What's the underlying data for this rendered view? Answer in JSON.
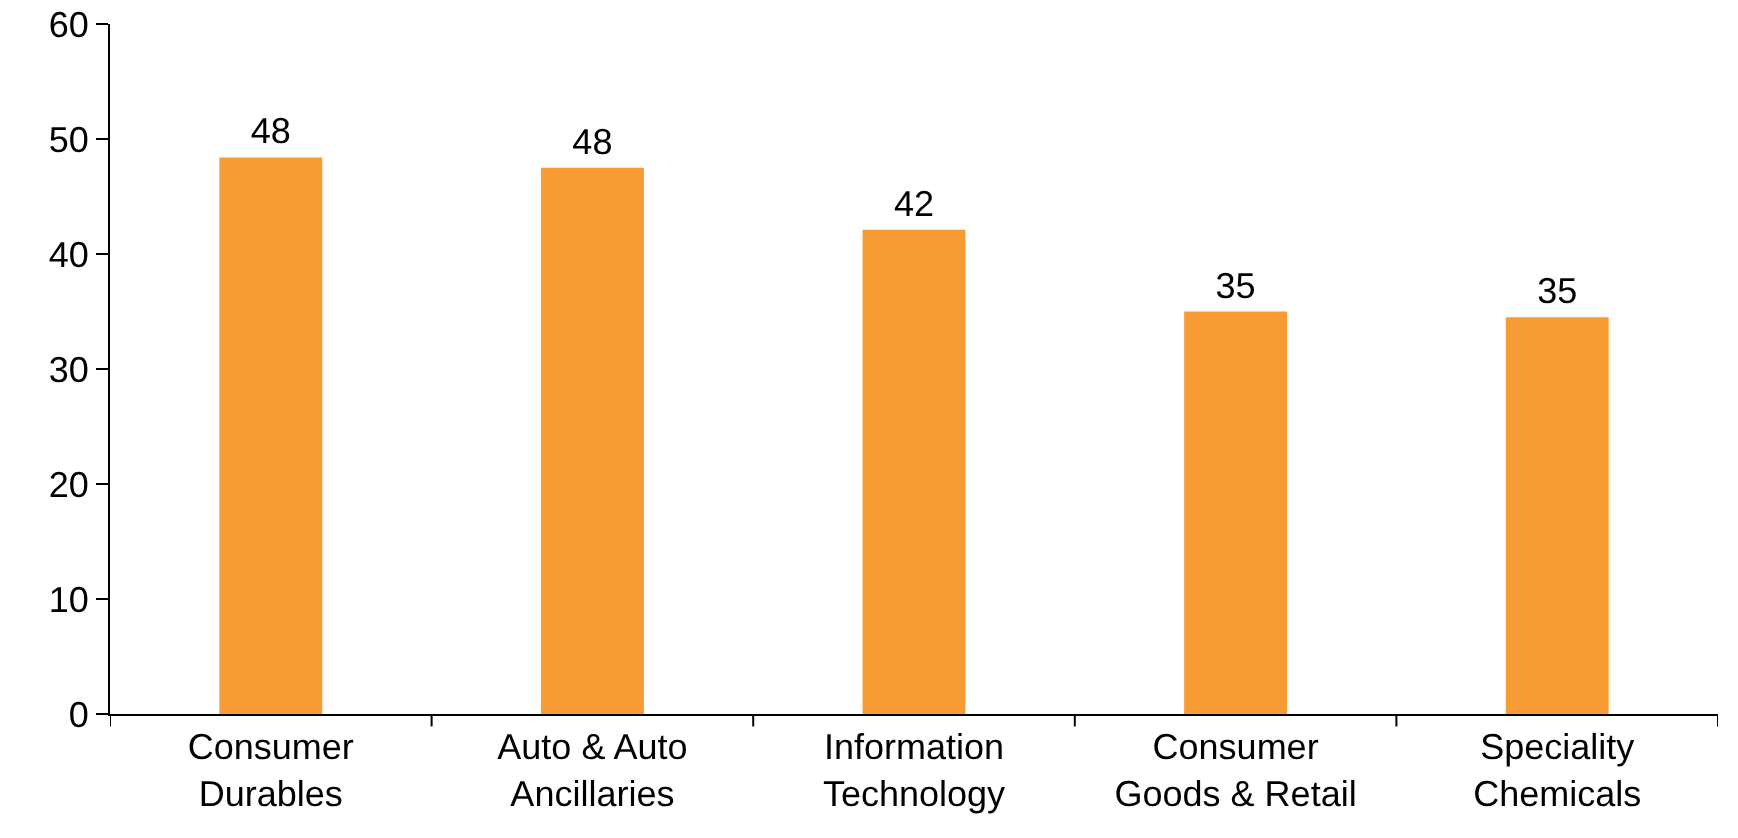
{
  "chart_data": {
    "type": "bar",
    "categories": [
      "Consumer Durables",
      "Auto & Auto Ancillaries",
      "Information Technology",
      "Consumer Goods & Retail",
      "Speciality Chemicals"
    ],
    "values": [
      48.4,
      47.5,
      42.1,
      35.0,
      34.5
    ],
    "value_labels": [
      "48",
      "48",
      "42",
      "35",
      "35"
    ],
    "color": "#f79b35",
    "ylim": [
      0,
      60
    ],
    "yticks": [
      0,
      10,
      20,
      30,
      40,
      50,
      60
    ],
    "grid": false
  }
}
